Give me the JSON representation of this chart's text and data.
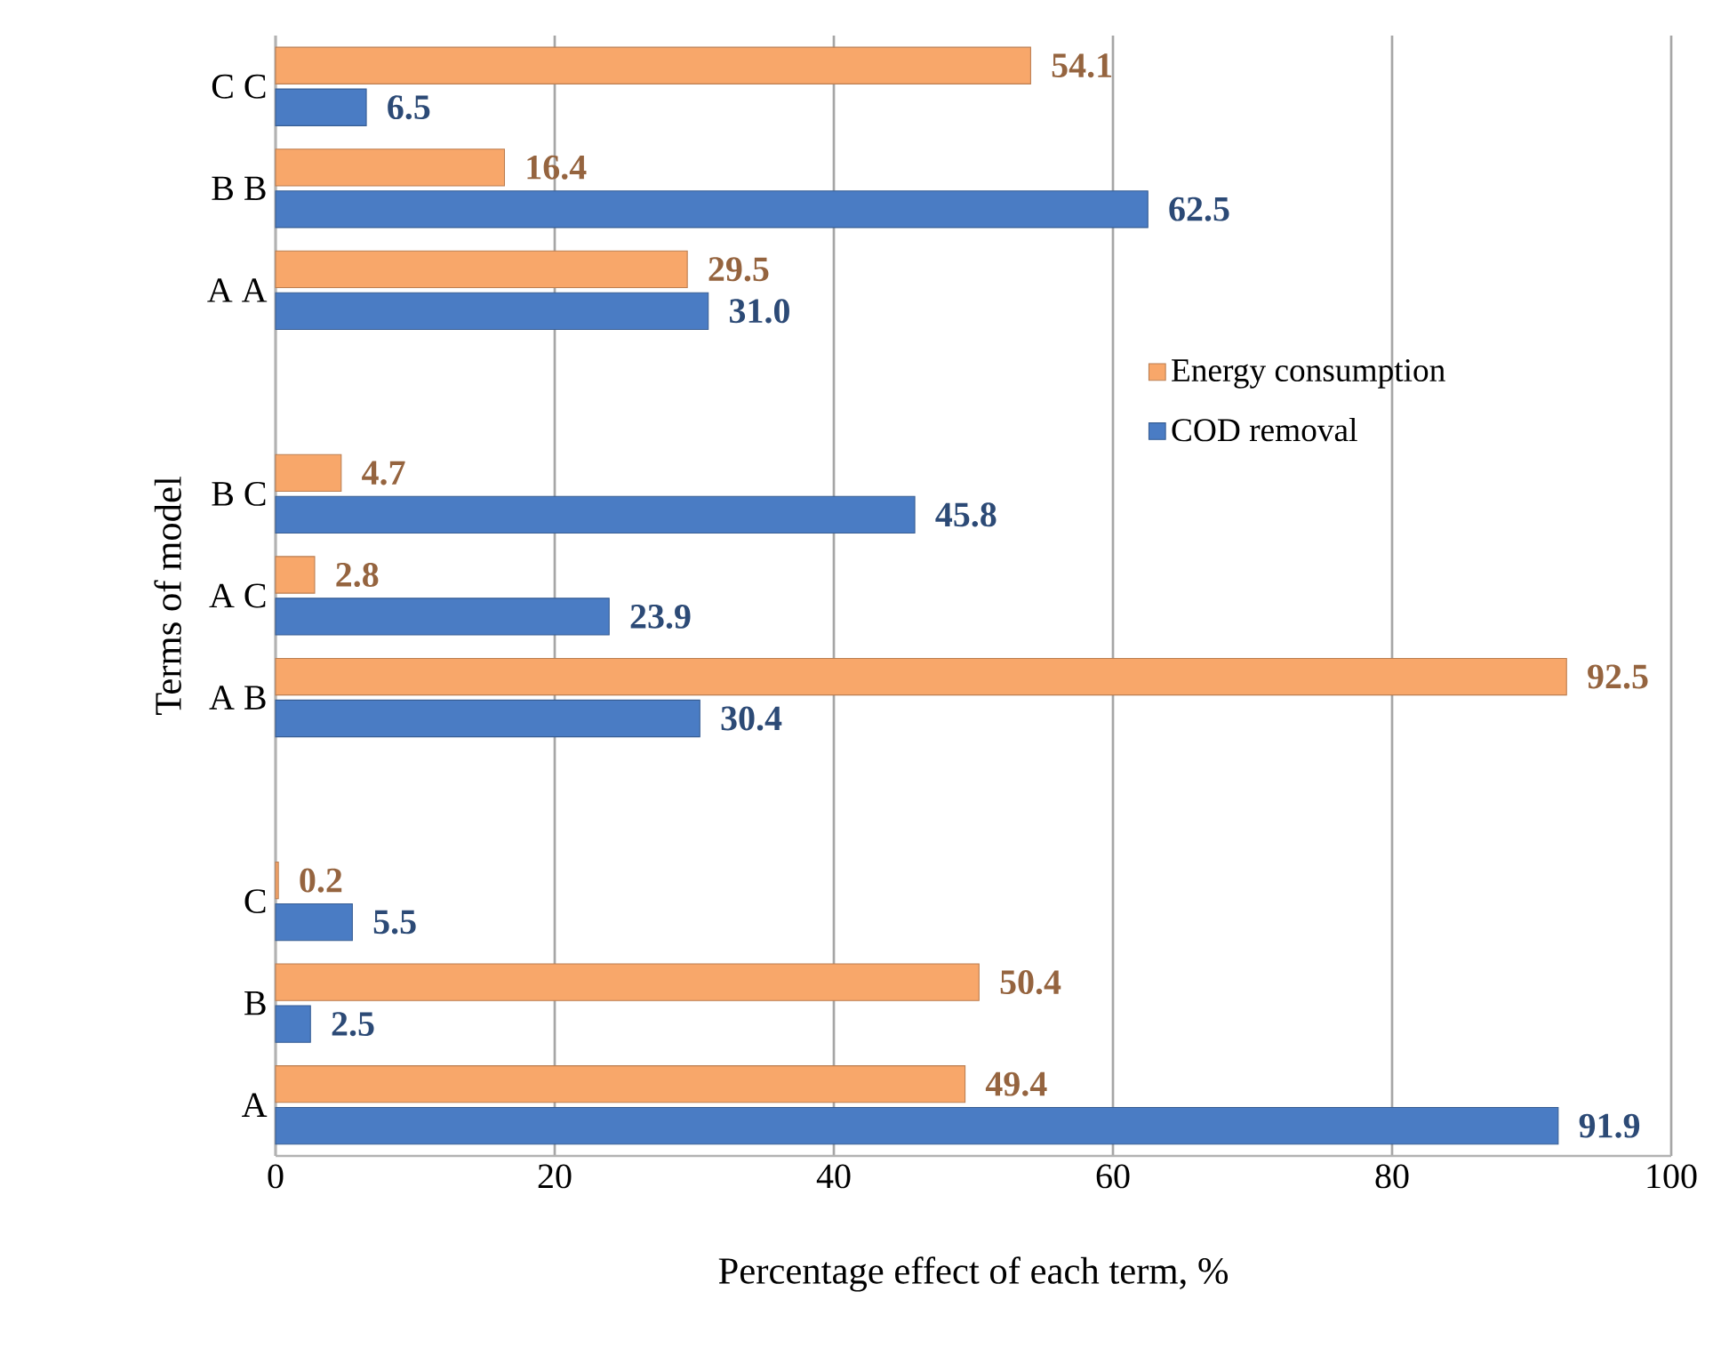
{
  "chart_data": {
    "type": "bar",
    "orientation": "horizontal",
    "xlabel": "Percentage effect of each term, %",
    "ylabel": "Terms of model",
    "categories": [
      "C C",
      "B B",
      "A A",
      null,
      "B C",
      "A C",
      "A B",
      null,
      "C",
      "B",
      "A"
    ],
    "series": [
      {
        "name": "Energy consumption",
        "color": "#f8a76a",
        "values": [
          54.1,
          16.4,
          29.5,
          null,
          4.7,
          2.8,
          92.5,
          null,
          0.2,
          50.4,
          49.4
        ],
        "value_labels": [
          "54.1",
          "16.4",
          "29.5",
          null,
          "4.7",
          "2.8",
          "92.5",
          null,
          "0.2",
          "50.4",
          "49.4"
        ]
      },
      {
        "name": "COD removal",
        "color": "#4a7cc4",
        "values": [
          6.5,
          62.5,
          31.0,
          null,
          45.8,
          23.9,
          30.4,
          null,
          5.5,
          2.5,
          91.9
        ],
        "value_labels": [
          "6.5",
          "62.5",
          "31.0",
          null,
          "45.8",
          "23.9",
          "30.4",
          null,
          "5.5",
          "2.5",
          "91.9"
        ]
      }
    ],
    "xlim": [
      0,
      100
    ],
    "xticks": [
      0,
      20,
      40,
      60,
      80,
      100
    ],
    "grid": "x",
    "legend": "right"
  }
}
